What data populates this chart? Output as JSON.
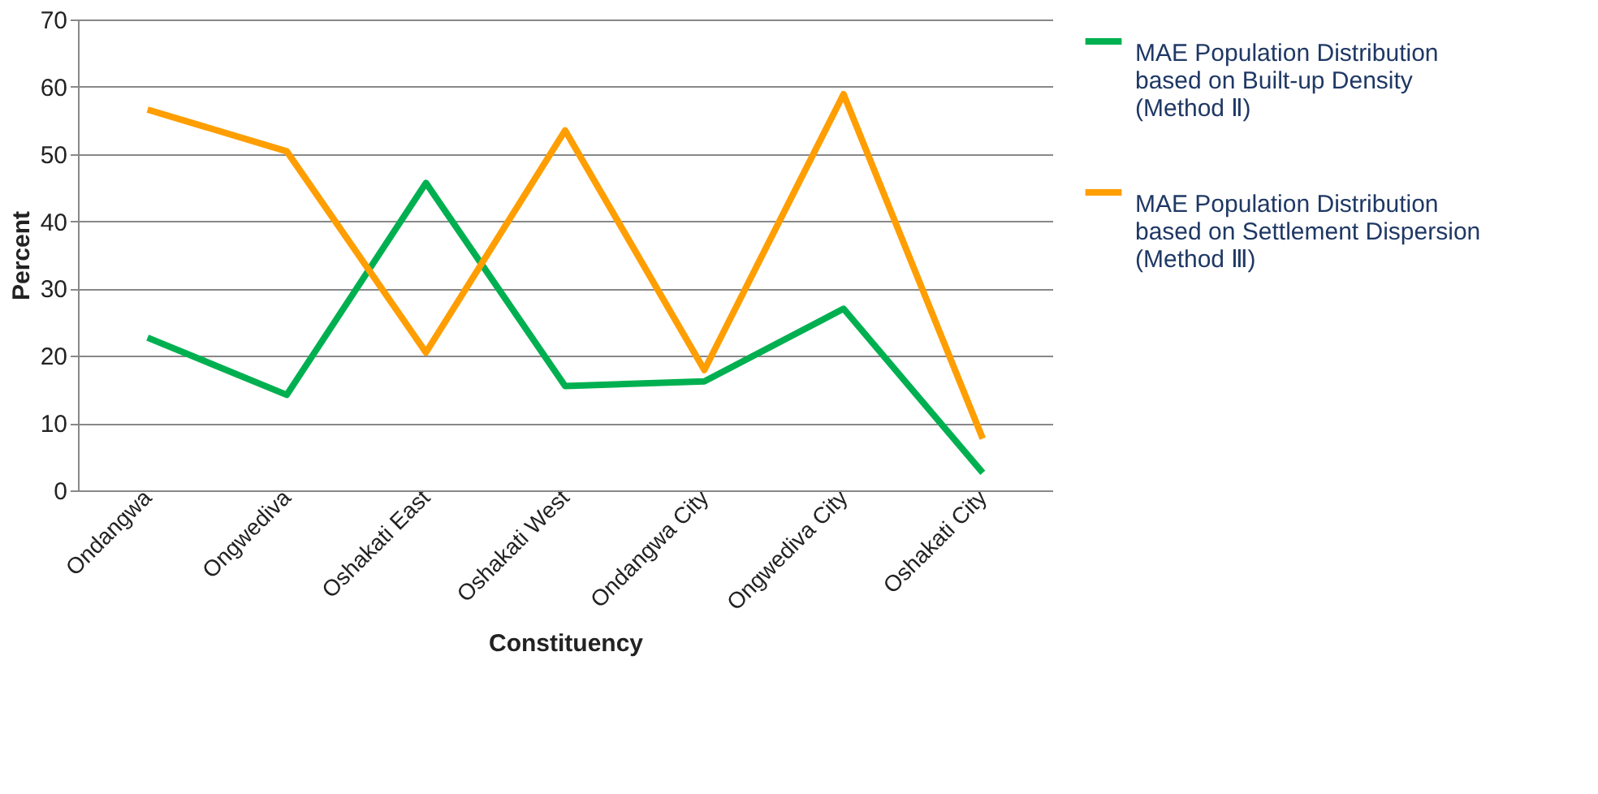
{
  "chart_data": {
    "type": "line",
    "xlabel": "Constituency",
    "ylabel": "Percent",
    "categories": [
      "Ondangwa",
      "Ongwediva",
      "Oshakati East",
      "Oshakati West",
      "Ondangwa City",
      "Ongwediva City",
      "Oshakati City"
    ],
    "series": [
      {
        "name": "MAE Population Distribution based on Built-up Density (Method Ⅱ)",
        "color": "#00b050",
        "values": [
          22.7,
          14.2,
          45.7,
          15.5,
          16.2,
          27.0,
          2.6
        ]
      },
      {
        "name": "MAE Population Distribution based on Settlement Dispersion (Method Ⅲ)",
        "color": "#ff9e00",
        "values": [
          56.6,
          50.4,
          20.5,
          53.5,
          17.9,
          58.9,
          7.7
        ]
      }
    ],
    "ylim": [
      0,
      70
    ],
    "yticks": [
      0,
      10,
      20,
      30,
      40,
      50,
      60,
      70
    ],
    "grid": "y",
    "legend": "right",
    "marker": "none",
    "line_style": "solid"
  }
}
